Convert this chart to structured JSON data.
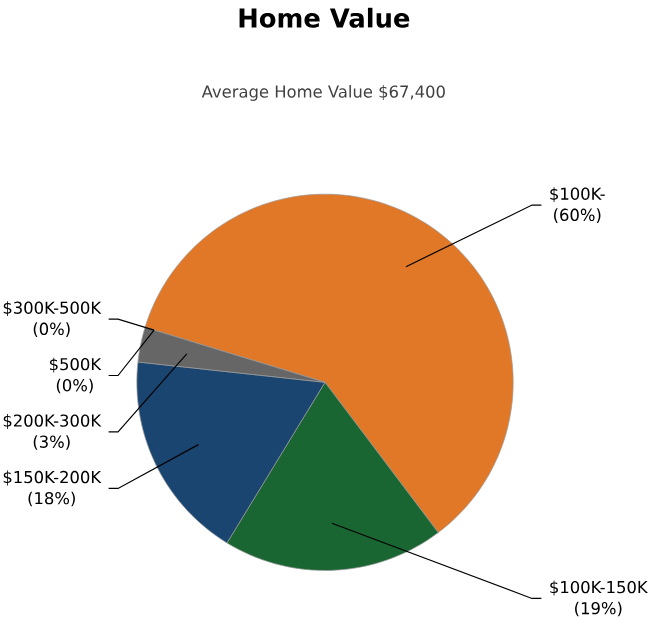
{
  "chart_data": {
    "type": "pie",
    "title": "Home Value",
    "subtitle": "Average Home Value  $67,400",
    "categories": [
      "$100K-",
      "$100K-150K",
      "$150K-200K",
      "$200K-300K",
      "$500K",
      "$300K-500K"
    ],
    "values": [
      60,
      19,
      18,
      3,
      0,
      0
    ],
    "value_labels": [
      "(60%)",
      "(19%)",
      "(18%)",
      "(3%)",
      "(0%)",
      "(0%)"
    ],
    "colors": [
      "#e07828",
      "#1a6632",
      "#1a4570",
      "#666666",
      "#999999",
      "#bbbbbb"
    ]
  }
}
